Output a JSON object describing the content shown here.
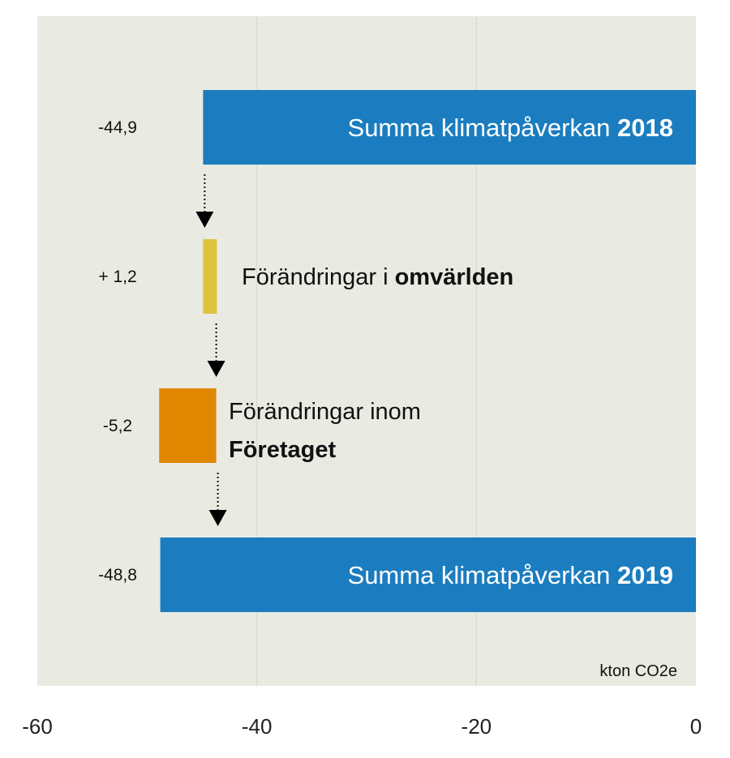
{
  "chart_data": {
    "type": "waterfall-bar",
    "orientation": "horizontal",
    "x_ticks": [
      -60,
      -40,
      -20,
      0
    ],
    "xlim": [
      -60,
      0
    ],
    "grid": true,
    "unit_label": "kton CO2e",
    "bars": [
      {
        "id": "total-2018",
        "kind": "total",
        "value": -44.9,
        "start": 0,
        "end": -44.9,
        "value_label": "-44,9",
        "label_text": "Summa klimatpåverkan ",
        "label_bold": "2018",
        "color": "#1b7dbf"
      },
      {
        "id": "change-external",
        "kind": "delta",
        "value": 1.2,
        "start": -44.9,
        "end": -43.7,
        "value_label": "+ 1,2",
        "label_text": "Förändringar i ",
        "label_bold": "omvärlden",
        "color": "#dcc43c"
      },
      {
        "id": "change-company",
        "kind": "delta",
        "value": -5.2,
        "start": -43.7,
        "end": -48.9,
        "value_label": "-5,2",
        "label_text": "Förändringar inom",
        "label_bold": "Företaget",
        "color": "#e08700"
      },
      {
        "id": "total-2019",
        "kind": "total",
        "value": -48.8,
        "start": 0,
        "end": -48.8,
        "value_label": "-48,8",
        "label_text": "Summa klimatpåverkan ",
        "label_bold": "2019",
        "color": "#1b7dbf"
      }
    ]
  }
}
